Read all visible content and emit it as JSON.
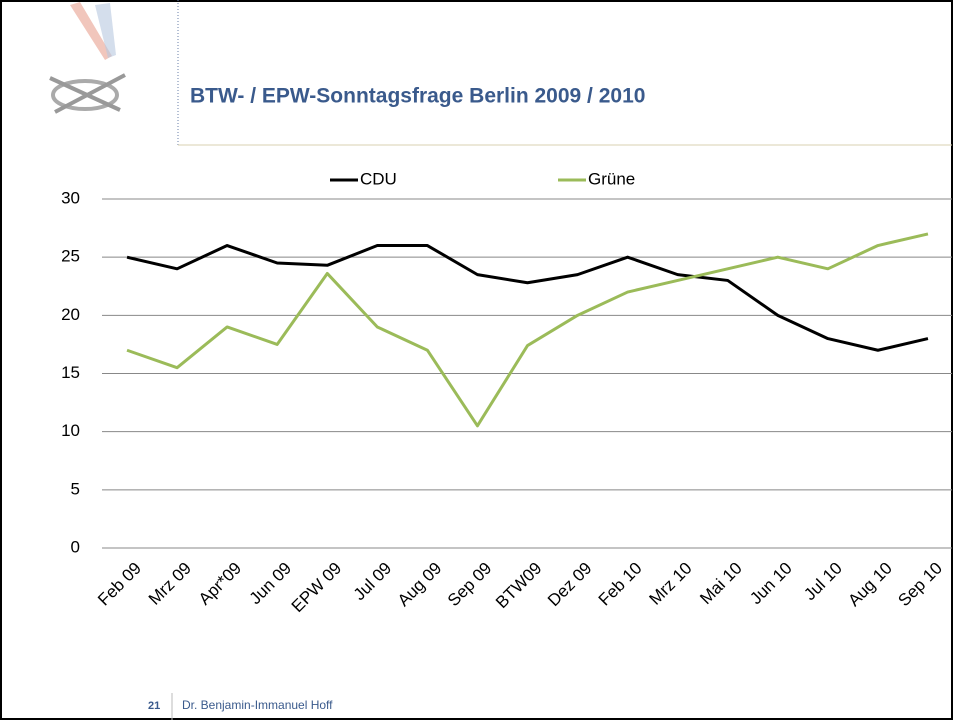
{
  "slide": {
    "title": "BTW- / EPW-Sonntagsfrage Berlin 2009 / 2010",
    "page_number": "21",
    "author": "Dr. Benjamin-Immanuel Hoff"
  },
  "chart_data": {
    "type": "line",
    "categories": [
      "Feb 09",
      "Mrz 09",
      "Apr*09",
      "Jun 09",
      "EPW 09",
      "Jul 09",
      "Aug 09",
      "Sep 09",
      "BTW09",
      "Dez 09",
      "Feb 10",
      "Mrz 10",
      "Mai 10",
      "Jun 10",
      "Jul 10",
      "Aug 10",
      "Sep 10"
    ],
    "series": [
      {
        "name": "CDU",
        "color": "#000000",
        "values": [
          25,
          24,
          26,
          24.5,
          24.3,
          26,
          26,
          23.5,
          22.8,
          23.5,
          25,
          23.5,
          23,
          20,
          18,
          17,
          18
        ]
      },
      {
        "name": "Grüne",
        "color": "#9bbb59",
        "values": [
          17,
          15.5,
          19,
          17.5,
          23.6,
          19,
          17,
          10.5,
          17.4,
          20,
          22,
          23,
          24,
          25,
          24,
          26,
          27
        ]
      }
    ],
    "ylim": [
      0,
      30
    ],
    "yticks": [
      0,
      5,
      10,
      15,
      20,
      25,
      30
    ],
    "grid": true,
    "legend": "top"
  }
}
